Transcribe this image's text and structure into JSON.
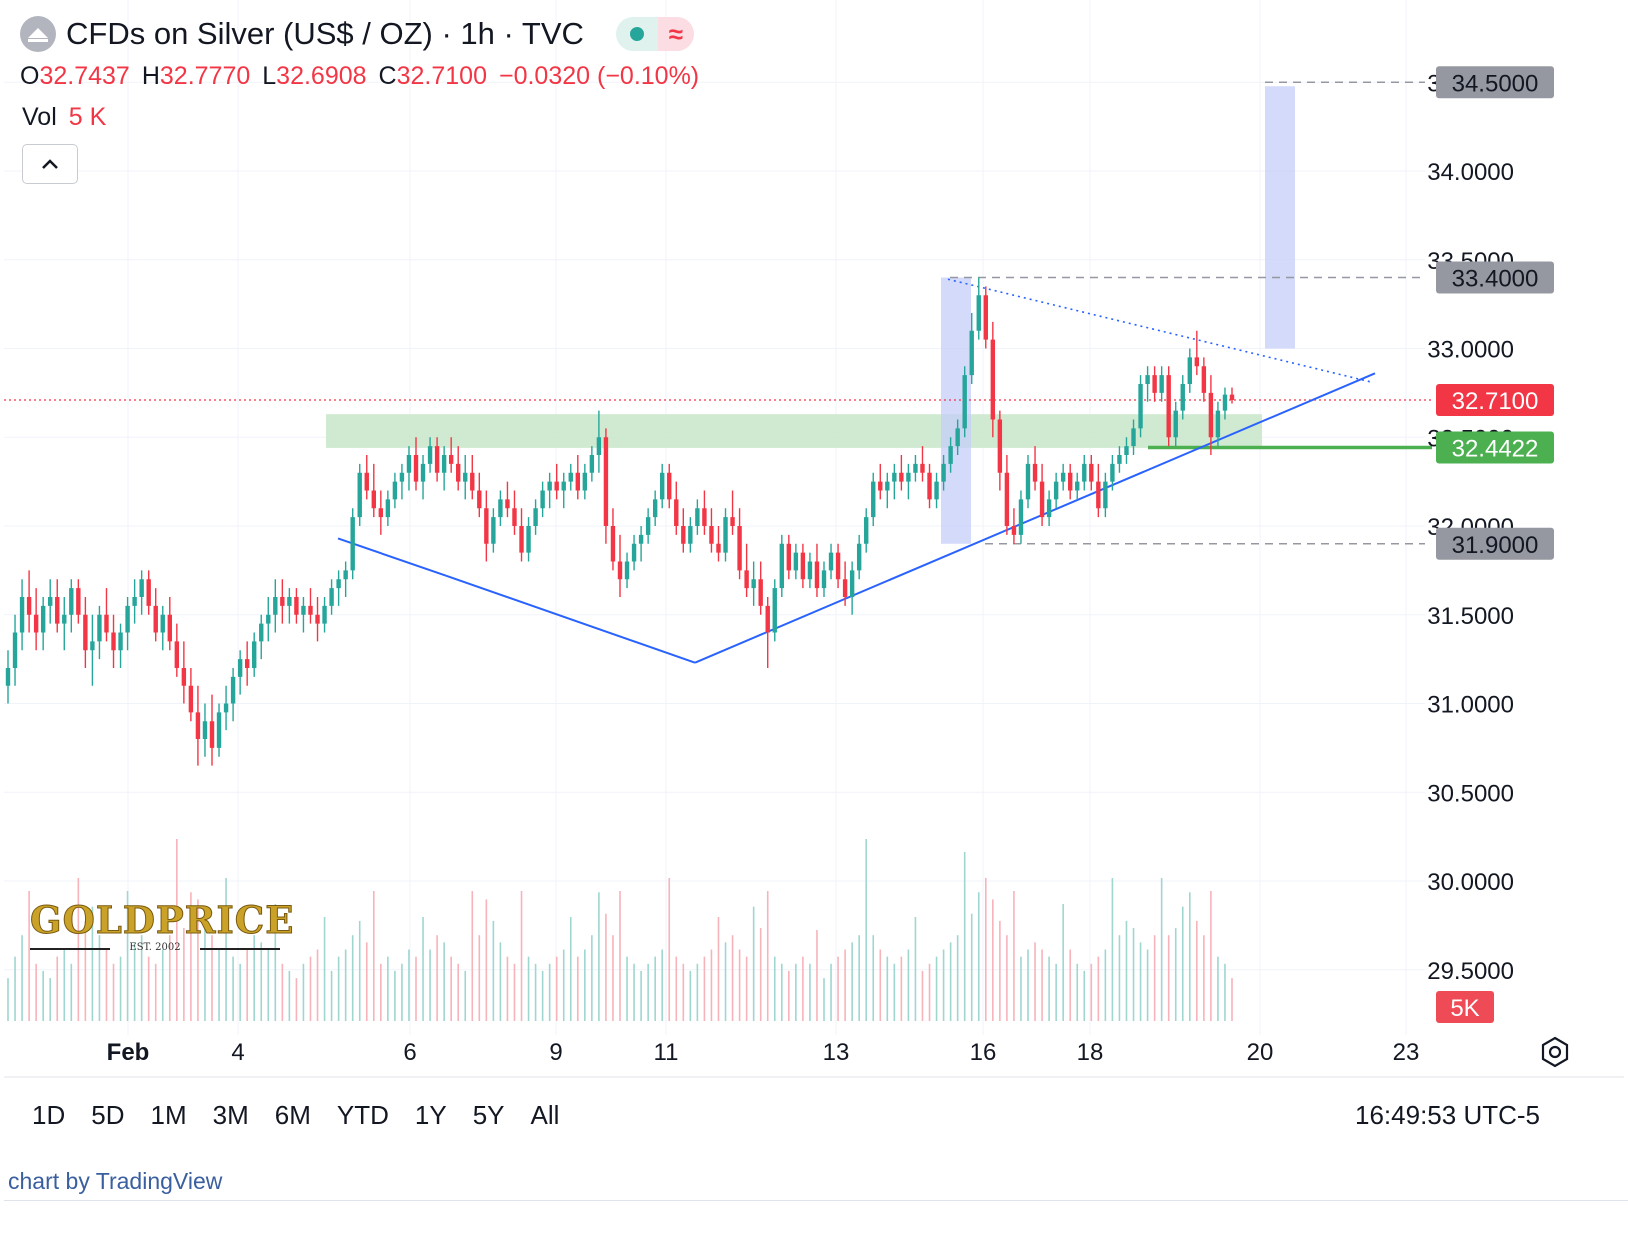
{
  "header": {
    "title": "CFDs on Silver (US$ / OZ) · 1h · TVC",
    "delay_glyph": "≈"
  },
  "ohlc": {
    "open_label": "O",
    "open": "32.7437",
    "high_label": "H",
    "high": "32.7770",
    "low_label": "L",
    "low": "32.6908",
    "close_label": "C",
    "close": "32.7100",
    "change": "−0.0320 (−0.10%)"
  },
  "volume": {
    "label": "Vol",
    "value": "5 K"
  },
  "logo": {
    "word": "GOLDPRICE",
    "est": "EST. 2002"
  },
  "ranges": [
    "1D",
    "5D",
    "1M",
    "3M",
    "6M",
    "YTD",
    "1Y",
    "5Y",
    "All"
  ],
  "clock": "16:49:53 UTC-5",
  "credit": "chart by TradingView",
  "icons": {
    "symbol": "exchange-logo-icon",
    "collapse": "chevron-up-icon",
    "settings": "gear-icon",
    "status": "market-open-dot-icon"
  },
  "colors": {
    "up": "#26a69a",
    "down": "#f23645",
    "trendline": "#2962ff",
    "zone": "#c8e6c9",
    "support": "#4caf50",
    "projection": "#c5cef8"
  },
  "chart_data": {
    "type": "candlestick",
    "ylim": [
      29.2,
      35.0
    ],
    "yticks": [
      "34.5000",
      "34.0000",
      "33.5000",
      "33.0000",
      "32.5000",
      "32.0000",
      "31.5000",
      "31.0000",
      "30.5000",
      "30.0000",
      "29.5000"
    ],
    "xticks": [
      "Feb",
      "4",
      "6",
      "9",
      "11",
      "13",
      "16",
      "18",
      "20",
      "23"
    ],
    "last_price": "32.7100",
    "volume_last": "5K",
    "price_labels": [
      {
        "value": "34.5000",
        "style": "gray"
      },
      {
        "value": "33.4000",
        "style": "gray"
      },
      {
        "value": "32.4422",
        "style": "green"
      },
      {
        "value": "31.9000",
        "style": "gray"
      }
    ],
    "horizontal_levels": [
      34.5,
      33.4,
      32.4422,
      31.9
    ],
    "resistance_zone": [
      32.44,
      32.63
    ],
    "ohlc_series": [
      [
        31.1,
        31.3,
        31.0,
        31.2
      ],
      [
        31.2,
        31.5,
        31.1,
        31.4
      ],
      [
        31.4,
        31.7,
        31.3,
        31.6
      ],
      [
        31.6,
        31.75,
        31.4,
        31.5
      ],
      [
        31.5,
        31.65,
        31.3,
        31.4
      ],
      [
        31.4,
        31.6,
        31.3,
        31.55
      ],
      [
        31.55,
        31.7,
        31.45,
        31.6
      ],
      [
        31.6,
        31.7,
        31.4,
        31.45
      ],
      [
        31.45,
        31.6,
        31.3,
        31.5
      ],
      [
        31.5,
        31.7,
        31.4,
        31.65
      ],
      [
        31.65,
        31.7,
        31.45,
        31.5
      ],
      [
        31.5,
        31.6,
        31.2,
        31.3
      ],
      [
        31.3,
        31.5,
        31.1,
        31.35
      ],
      [
        31.35,
        31.55,
        31.25,
        31.5
      ],
      [
        31.5,
        31.65,
        31.35,
        31.4
      ],
      [
        31.4,
        31.5,
        31.2,
        31.3
      ],
      [
        31.3,
        31.45,
        31.2,
        31.4
      ],
      [
        31.4,
        31.6,
        31.3,
        31.55
      ],
      [
        31.55,
        31.7,
        31.45,
        31.6
      ],
      [
        31.6,
        31.75,
        31.5,
        31.7
      ],
      [
        31.7,
        31.75,
        31.5,
        31.55
      ],
      [
        31.55,
        31.65,
        31.35,
        31.4
      ],
      [
        31.4,
        31.55,
        31.3,
        31.5
      ],
      [
        31.5,
        31.6,
        31.3,
        31.35
      ],
      [
        31.35,
        31.45,
        31.15,
        31.2
      ],
      [
        31.2,
        31.35,
        31.0,
        31.1
      ],
      [
        31.1,
        31.2,
        30.9,
        30.95
      ],
      [
        30.95,
        31.1,
        30.65,
        30.8
      ],
      [
        30.8,
        31.0,
        30.7,
        30.9
      ],
      [
        30.9,
        31.05,
        30.65,
        30.75
      ],
      [
        30.75,
        31.0,
        30.7,
        30.95
      ],
      [
        30.95,
        31.1,
        30.85,
        31.0
      ],
      [
        31.0,
        31.2,
        30.9,
        31.15
      ],
      [
        31.15,
        31.3,
        31.05,
        31.25
      ],
      [
        31.25,
        31.35,
        31.1,
        31.2
      ],
      [
        31.2,
        31.4,
        31.15,
        31.35
      ],
      [
        31.35,
        31.5,
        31.25,
        31.45
      ],
      [
        31.45,
        31.6,
        31.35,
        31.5
      ],
      [
        31.5,
        31.7,
        31.4,
        31.6
      ],
      [
        31.6,
        31.7,
        31.45,
        31.55
      ],
      [
        31.55,
        31.65,
        31.45,
        31.6
      ],
      [
        31.6,
        31.65,
        31.45,
        31.5
      ],
      [
        31.5,
        31.6,
        31.4,
        31.55
      ],
      [
        31.55,
        31.65,
        31.45,
        31.5
      ],
      [
        31.5,
        31.6,
        31.35,
        31.45
      ],
      [
        31.45,
        31.6,
        31.4,
        31.55
      ],
      [
        31.55,
        31.7,
        31.5,
        31.65
      ],
      [
        31.65,
        31.75,
        31.55,
        31.7
      ],
      [
        31.7,
        31.8,
        31.6,
        31.75
      ],
      [
        31.75,
        32.1,
        31.7,
        32.05
      ],
      [
        32.05,
        32.35,
        32.0,
        32.3
      ],
      [
        32.3,
        32.4,
        32.15,
        32.2
      ],
      [
        32.2,
        32.35,
        32.05,
        32.1
      ],
      [
        32.1,
        32.2,
        31.95,
        32.05
      ],
      [
        32.05,
        32.2,
        32.0,
        32.15
      ],
      [
        32.15,
        32.3,
        32.1,
        32.25
      ],
      [
        32.25,
        32.35,
        32.15,
        32.3
      ],
      [
        32.3,
        32.45,
        32.2,
        32.4
      ],
      [
        32.4,
        32.5,
        32.2,
        32.25
      ],
      [
        32.25,
        32.4,
        32.15,
        32.35
      ],
      [
        32.35,
        32.5,
        32.3,
        32.45
      ],
      [
        32.45,
        32.5,
        32.25,
        32.3
      ],
      [
        32.3,
        32.45,
        32.2,
        32.4
      ],
      [
        32.4,
        32.5,
        32.3,
        32.35
      ],
      [
        32.35,
        32.45,
        32.2,
        32.25
      ],
      [
        32.25,
        32.4,
        32.15,
        32.3
      ],
      [
        32.3,
        32.4,
        32.15,
        32.2
      ],
      [
        32.2,
        32.3,
        32.05,
        32.1
      ],
      [
        32.1,
        32.2,
        31.8,
        31.9
      ],
      [
        31.9,
        32.1,
        31.85,
        32.05
      ],
      [
        32.05,
        32.2,
        32.0,
        32.15
      ],
      [
        32.15,
        32.25,
        32.05,
        32.1
      ],
      [
        32.1,
        32.2,
        31.95,
        32.0
      ],
      [
        32.0,
        32.1,
        31.8,
        31.85
      ],
      [
        31.85,
        32.05,
        31.8,
        32.0
      ],
      [
        32.0,
        32.15,
        31.95,
        32.1
      ],
      [
        32.1,
        32.25,
        32.05,
        32.2
      ],
      [
        32.2,
        32.3,
        32.1,
        32.25
      ],
      [
        32.25,
        32.35,
        32.15,
        32.2
      ],
      [
        32.2,
        32.3,
        32.1,
        32.25
      ],
      [
        32.25,
        32.35,
        32.2,
        32.3
      ],
      [
        32.3,
        32.4,
        32.15,
        32.2
      ],
      [
        32.2,
        32.35,
        32.15,
        32.3
      ],
      [
        32.3,
        32.45,
        32.25,
        32.4
      ],
      [
        32.4,
        32.65,
        32.3,
        32.5
      ],
      [
        32.5,
        32.55,
        31.9,
        32.0
      ],
      [
        32.0,
        32.1,
        31.75,
        31.8
      ],
      [
        31.8,
        31.95,
        31.6,
        31.7
      ],
      [
        31.7,
        31.85,
        31.65,
        31.8
      ],
      [
        31.8,
        31.95,
        31.75,
        31.9
      ],
      [
        31.9,
        32.0,
        31.8,
        31.95
      ],
      [
        31.95,
        32.1,
        31.9,
        32.05
      ],
      [
        32.05,
        32.2,
        32.0,
        32.15
      ],
      [
        32.15,
        32.35,
        32.1,
        32.3
      ],
      [
        32.3,
        32.35,
        32.1,
        32.15
      ],
      [
        32.15,
        32.25,
        31.95,
        32.0
      ],
      [
        32.0,
        32.1,
        31.85,
        31.9
      ],
      [
        31.9,
        32.05,
        31.85,
        32.0
      ],
      [
        32.0,
        32.15,
        31.95,
        32.1
      ],
      [
        32.1,
        32.2,
        31.95,
        32.0
      ],
      [
        32.0,
        32.1,
        31.85,
        31.9
      ],
      [
        31.9,
        32.0,
        31.8,
        31.85
      ],
      [
        31.85,
        32.1,
        31.8,
        32.05
      ],
      [
        32.05,
        32.2,
        31.95,
        32.0
      ],
      [
        32.0,
        32.1,
        31.7,
        31.75
      ],
      [
        31.75,
        31.9,
        31.6,
        31.65
      ],
      [
        31.65,
        31.8,
        31.55,
        31.7
      ],
      [
        31.7,
        31.8,
        31.5,
        31.55
      ],
      [
        31.55,
        31.6,
        31.2,
        31.4
      ],
      [
        31.4,
        31.7,
        31.35,
        31.65
      ],
      [
        31.65,
        31.95,
        31.6,
        31.9
      ],
      [
        31.9,
        31.95,
        31.7,
        31.75
      ],
      [
        31.75,
        31.9,
        31.7,
        31.85
      ],
      [
        31.85,
        31.9,
        31.65,
        31.7
      ],
      [
        31.7,
        31.85,
        31.65,
        31.8
      ],
      [
        31.8,
        31.9,
        31.6,
        31.65
      ],
      [
        31.65,
        31.8,
        31.6,
        31.75
      ],
      [
        31.75,
        31.9,
        31.7,
        31.85
      ],
      [
        31.85,
        31.9,
        31.65,
        31.7
      ],
      [
        31.7,
        31.8,
        31.55,
        31.6
      ],
      [
        31.6,
        31.8,
        31.5,
        31.75
      ],
      [
        31.75,
        31.95,
        31.7,
        31.9
      ],
      [
        31.9,
        32.1,
        31.85,
        32.05
      ],
      [
        32.05,
        32.3,
        32.0,
        32.25
      ],
      [
        32.25,
        32.35,
        32.15,
        32.2
      ],
      [
        32.2,
        32.3,
        32.1,
        32.25
      ],
      [
        32.25,
        32.35,
        32.15,
        32.3
      ],
      [
        32.3,
        32.4,
        32.2,
        32.25
      ],
      [
        32.25,
        32.35,
        32.15,
        32.3
      ],
      [
        32.3,
        32.4,
        32.25,
        32.35
      ],
      [
        32.35,
        32.45,
        32.25,
        32.3
      ],
      [
        32.3,
        32.35,
        32.1,
        32.15
      ],
      [
        32.15,
        32.3,
        32.1,
        32.25
      ],
      [
        32.25,
        32.4,
        32.2,
        32.35
      ],
      [
        32.35,
        32.5,
        32.3,
        32.45
      ],
      [
        32.45,
        32.6,
        32.4,
        32.55
      ],
      [
        32.55,
        32.9,
        32.5,
        32.85
      ],
      [
        32.85,
        33.2,
        32.8,
        33.1
      ],
      [
        33.1,
        33.4,
        33.05,
        33.3
      ],
      [
        33.3,
        33.35,
        33.0,
        33.05
      ],
      [
        33.05,
        33.15,
        32.5,
        32.6
      ],
      [
        32.6,
        32.65,
        32.2,
        32.3
      ],
      [
        32.3,
        32.4,
        31.95,
        32.0
      ],
      [
        32.0,
        32.1,
        31.9,
        31.95
      ],
      [
        31.95,
        32.2,
        31.9,
        32.15
      ],
      [
        32.15,
        32.4,
        32.1,
        32.35
      ],
      [
        32.35,
        32.45,
        32.2,
        32.25
      ],
      [
        32.25,
        32.35,
        32.0,
        32.05
      ],
      [
        32.05,
        32.2,
        32.0,
        32.15
      ],
      [
        32.15,
        32.3,
        32.1,
        32.25
      ],
      [
        32.25,
        32.35,
        32.2,
        32.3
      ],
      [
        32.3,
        32.35,
        32.15,
        32.2
      ],
      [
        32.2,
        32.3,
        32.15,
        32.25
      ],
      [
        32.25,
        32.4,
        32.2,
        32.35
      ],
      [
        32.35,
        32.4,
        32.2,
        32.25
      ],
      [
        32.25,
        32.35,
        32.05,
        32.1
      ],
      [
        32.1,
        32.3,
        32.05,
        32.25
      ],
      [
        32.25,
        32.4,
        32.2,
        32.35
      ],
      [
        32.35,
        32.45,
        32.3,
        32.4
      ],
      [
        32.4,
        32.5,
        32.35,
        32.45
      ],
      [
        32.45,
        32.6,
        32.4,
        32.55
      ],
      [
        32.55,
        32.85,
        32.5,
        32.8
      ],
      [
        32.8,
        32.9,
        32.7,
        32.85
      ],
      [
        32.85,
        32.9,
        32.7,
        32.75
      ],
      [
        32.75,
        32.9,
        32.7,
        32.85
      ],
      [
        32.85,
        32.9,
        32.45,
        32.5
      ],
      [
        32.5,
        32.7,
        32.45,
        32.65
      ],
      [
        32.65,
        32.85,
        32.6,
        32.8
      ],
      [
        32.8,
        33.0,
        32.75,
        32.95
      ],
      [
        32.95,
        33.1,
        32.85,
        32.9
      ],
      [
        32.9,
        32.95,
        32.7,
        32.75
      ],
      [
        32.75,
        32.85,
        32.4,
        32.5
      ],
      [
        32.5,
        32.7,
        32.45,
        32.65
      ],
      [
        32.65,
        32.78,
        32.6,
        32.74
      ],
      [
        32.74,
        32.78,
        32.69,
        32.71
      ]
    ],
    "volume_series": [
      0.3,
      0.45,
      0.6,
      0.5,
      0.4,
      0.35,
      0.3,
      0.45,
      0.5,
      0.4,
      0.55,
      0.7,
      0.8,
      0.6,
      0.5,
      0.4,
      0.45,
      0.5,
      0.55,
      0.6,
      0.45,
      0.4,
      0.5,
      0.6,
      0.7,
      0.65,
      0.9,
      0.85,
      0.7,
      0.6,
      0.5,
      0.55,
      0.45,
      0.4,
      0.5,
      0.6,
      0.55,
      0.5,
      0.45,
      0.4,
      0.35,
      0.3,
      0.4,
      0.45,
      0.5,
      0.4,
      0.35,
      0.45,
      0.5,
      0.6,
      0.7,
      0.55,
      0.5,
      0.4,
      0.45,
      0.35,
      0.4,
      0.5,
      0.45,
      0.4,
      0.5,
      0.6,
      0.55,
      0.45,
      0.4,
      0.35,
      0.5,
      0.6,
      0.85,
      0.7,
      0.55,
      0.45,
      0.4,
      0.5,
      0.45,
      0.4,
      0.35,
      0.4,
      0.45,
      0.5,
      0.4,
      0.45,
      0.5,
      0.6,
      0.9,
      0.75,
      0.6,
      0.5,
      0.45,
      0.4,
      0.35,
      0.4,
      0.45,
      0.5,
      0.55,
      0.45,
      0.4,
      0.35,
      0.4,
      0.45,
      0.5,
      0.4,
      0.55,
      0.6,
      0.5,
      0.45,
      0.8,
      0.65,
      0.5,
      0.45,
      0.4,
      0.35,
      0.4,
      0.45,
      0.4,
      0.35,
      0.3,
      0.4,
      0.45,
      0.5,
      0.55,
      0.6,
      0.7,
      0.6,
      0.5,
      0.45,
      0.4,
      0.45,
      0.5,
      0.4,
      0.35,
      0.4,
      0.45,
      0.5,
      0.55,
      0.6,
      0.65,
      0.75,
      0.9,
      1.0,
      0.85,
      0.7,
      0.6,
      0.5,
      0.45,
      0.5,
      0.55,
      0.5,
      0.45,
      0.4,
      0.45,
      0.5,
      0.4,
      0.35,
      0.4,
      0.45,
      0.5,
      0.55,
      0.6,
      0.7,
      0.65,
      0.55,
      0.5,
      0.6,
      0.55,
      0.6,
      0.65,
      0.8,
      0.9,
      0.7,
      0.6,
      0.5,
      0.45,
      0.4,
      0.3
    ]
  }
}
